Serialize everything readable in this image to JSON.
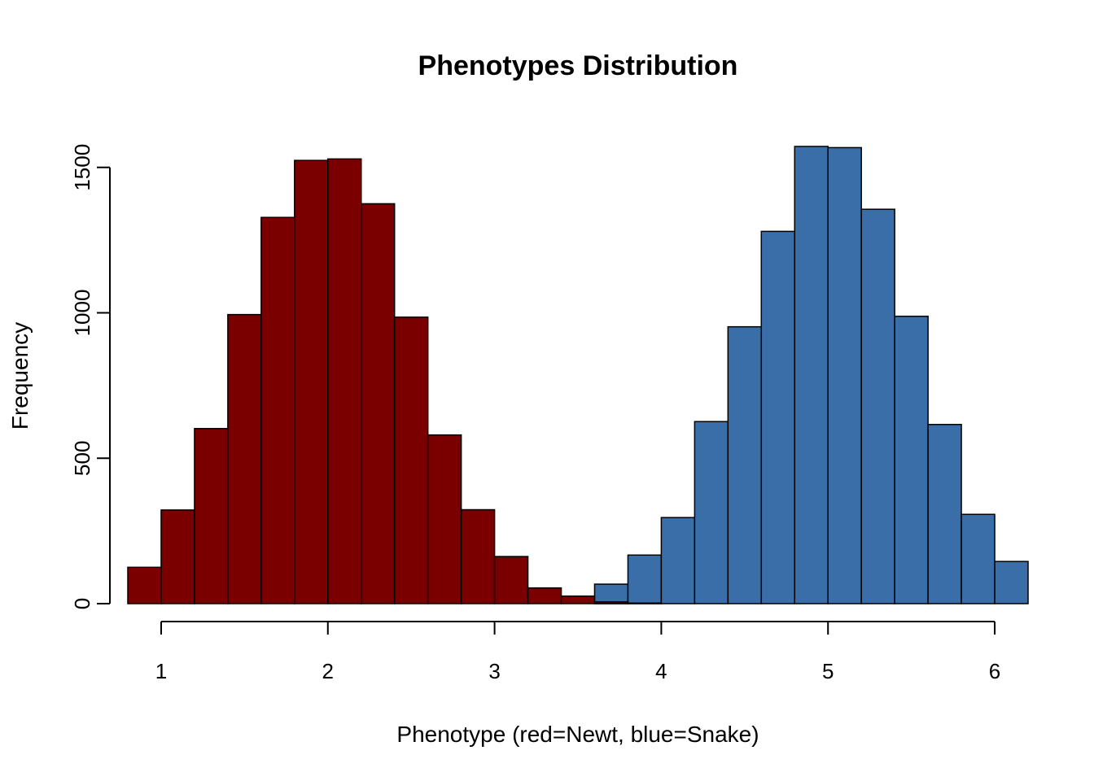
{
  "chart_data": {
    "type": "bar",
    "title": "Phenotypes Distribution",
    "xlabel": "Phenotype (red=Newt, blue=Snake)",
    "ylabel": "Frequency",
    "xlim": [
      0.8,
      6.2
    ],
    "ylim": [
      0,
      1600
    ],
    "x_ticks": [
      1,
      2,
      3,
      4,
      5,
      6
    ],
    "y_ticks": [
      0,
      500,
      1000,
      1500
    ],
    "bin_width": 0.2,
    "grid": false,
    "series": [
      {
        "color": "#7a0000",
        "bins": [
          {
            "x0": 0.8,
            "count": 125
          },
          {
            "x0": 1.0,
            "count": 322
          },
          {
            "x0": 1.2,
            "count": 602
          },
          {
            "x0": 1.4,
            "count": 994
          },
          {
            "x0": 1.6,
            "count": 1328
          },
          {
            "x0": 1.8,
            "count": 1524
          },
          {
            "x0": 2.0,
            "count": 1529
          },
          {
            "x0": 2.2,
            "count": 1375
          },
          {
            "x0": 2.4,
            "count": 985
          },
          {
            "x0": 2.6,
            "count": 580
          },
          {
            "x0": 2.8,
            "count": 323
          },
          {
            "x0": 3.0,
            "count": 162
          },
          {
            "x0": 3.2,
            "count": 54
          },
          {
            "x0": 3.4,
            "count": 26
          },
          {
            "x0": 3.6,
            "count": 6
          },
          {
            "x0": 3.8,
            "count": 2
          }
        ]
      },
      {
        "color": "#3a6ea8",
        "bins": [
          {
            "x0": 3.6,
            "count": 67
          },
          {
            "x0": 3.8,
            "count": 167
          },
          {
            "x0": 4.0,
            "count": 296
          },
          {
            "x0": 4.2,
            "count": 626
          },
          {
            "x0": 4.4,
            "count": 952
          },
          {
            "x0": 4.6,
            "count": 1280
          },
          {
            "x0": 4.8,
            "count": 1572
          },
          {
            "x0": 5.0,
            "count": 1568
          },
          {
            "x0": 5.2,
            "count": 1356
          },
          {
            "x0": 5.4,
            "count": 988
          },
          {
            "x0": 5.6,
            "count": 616
          },
          {
            "x0": 5.8,
            "count": 307
          },
          {
            "x0": 6.0,
            "count": 145
          }
        ]
      }
    ],
    "draw_order": [
      1,
      0
    ]
  }
}
